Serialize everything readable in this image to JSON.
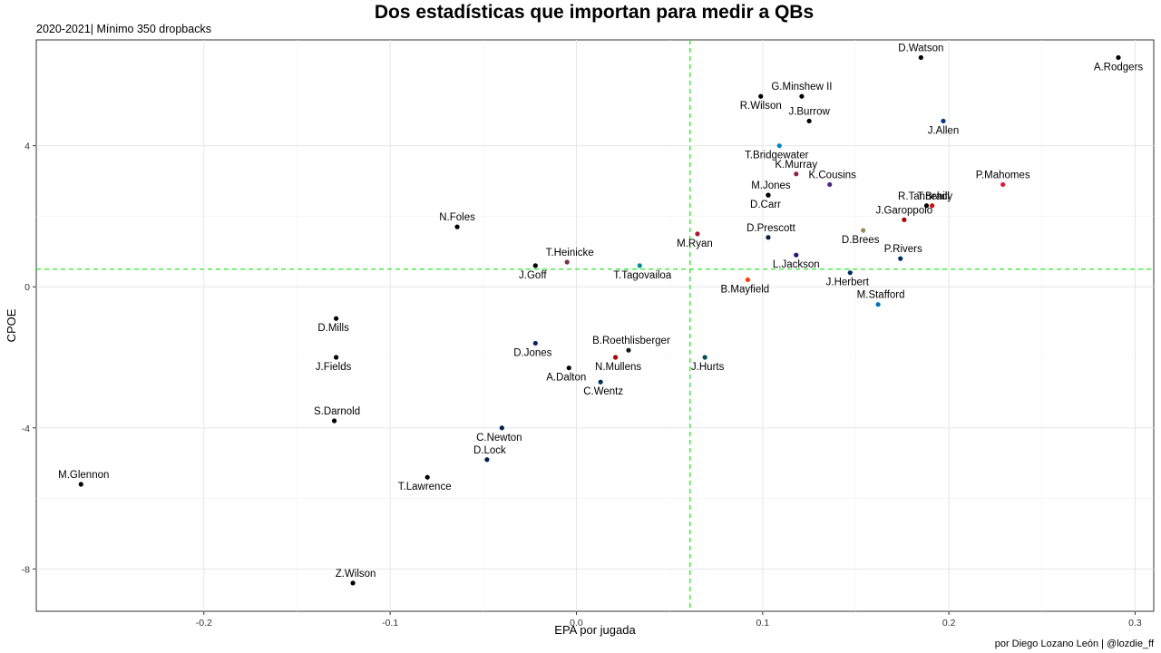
{
  "title": "Dos estadísticas que importan para medir a QBs",
  "subtitle": "2020-2021| Mínimo 350 dropbacks",
  "caption": "por Diego Lozano León | @lozdie_ff",
  "chart_data": {
    "type": "scatter",
    "xlabel": "EPA por jugada",
    "ylabel": "CPOE",
    "xlim": [
      -0.29,
      0.31
    ],
    "ylim": [
      -9.2,
      7.0
    ],
    "xticks": [
      -0.2,
      -0.1,
      0.0,
      0.1,
      0.2,
      0.3
    ],
    "xtick_labels": [
      "-0.2",
      "-0.1",
      "0.0",
      "0.1",
      "0.2",
      "0.3"
    ],
    "yticks": [
      -8,
      -4,
      0,
      4
    ],
    "ytick_labels": [
      "-8",
      "-4",
      "0",
      "4"
    ],
    "grid": true,
    "reference_lines": {
      "x": 0.061,
      "y": 0.5,
      "color": "#22ee22",
      "style": "dashed"
    },
    "points": [
      {
        "name": "D.Watson",
        "x": 0.185,
        "y": 6.5,
        "color": "#000000",
        "label_pos": "above"
      },
      {
        "name": "A.Rodgers",
        "x": 0.291,
        "y": 6.5,
        "color": "#000000",
        "label_pos": "below"
      },
      {
        "name": "G.Minshew II",
        "x": 0.121,
        "y": 5.4,
        "color": "#000000",
        "label_pos": "above"
      },
      {
        "name": "R.Wilson",
        "x": 0.099,
        "y": 5.4,
        "color": "#000000",
        "label_pos": "below"
      },
      {
        "name": "J.Burrow",
        "x": 0.125,
        "y": 4.7,
        "color": "#000000",
        "label_pos": "above"
      },
      {
        "name": "J.Allen",
        "x": 0.197,
        "y": 4.7,
        "color": "#00338d",
        "label_pos": "below"
      },
      {
        "name": "T.Bridgewater",
        "x": 0.109,
        "y": 4.0,
        "color": "#0085ca",
        "label_pos": "below-left"
      },
      {
        "name": "K.Murray",
        "x": 0.118,
        "y": 3.2,
        "color": "#97233f",
        "label_pos": "above"
      },
      {
        "name": "K.Cousins",
        "x": 0.136,
        "y": 2.9,
        "color": "#4f2683",
        "label_pos": "above-right"
      },
      {
        "name": "P.Mahomes",
        "x": 0.229,
        "y": 2.9,
        "color": "#e31837",
        "label_pos": "above"
      },
      {
        "name": "M.Jones",
        "x": 0.103,
        "y": 2.6,
        "color": "#000000",
        "label_pos": "above-right"
      },
      {
        "name": "D.Carr",
        "x": 0.103,
        "y": 2.6,
        "color": "#000000",
        "label_pos": "below-left"
      },
      {
        "name": "R.Tannehill",
        "x": 0.188,
        "y": 2.3,
        "color": "#000000",
        "label_pos": "above-left"
      },
      {
        "name": "T.Brady",
        "x": 0.191,
        "y": 2.3,
        "color": "#d50a0a",
        "label_pos": "above-right"
      },
      {
        "name": "J.Garoppolo",
        "x": 0.176,
        "y": 1.9,
        "color": "#aa0000",
        "label_pos": "above"
      },
      {
        "name": "N.Foles",
        "x": -0.064,
        "y": 1.7,
        "color": "#000000",
        "label_pos": "above"
      },
      {
        "name": "D.Prescott",
        "x": 0.103,
        "y": 1.4,
        "color": "#041e42",
        "label_pos": "above-right"
      },
      {
        "name": "D.Brees",
        "x": 0.154,
        "y": 1.6,
        "color": "#9f8958",
        "label_pos": "below-left"
      },
      {
        "name": "M.Ryan",
        "x": 0.065,
        "y": 1.5,
        "color": "#a71930",
        "label_pos": "below-left"
      },
      {
        "name": "L.Jackson",
        "x": 0.118,
        "y": 0.9,
        "color": "#241773",
        "label_pos": "right"
      },
      {
        "name": "P.Rivers",
        "x": 0.174,
        "y": 0.8,
        "color": "#002c5f",
        "label_pos": "above-right"
      },
      {
        "name": "T.Heinicke",
        "x": -0.005,
        "y": 0.7,
        "color": "#773141",
        "label_pos": "above-right"
      },
      {
        "name": "T.Tagovailoa",
        "x": 0.034,
        "y": 0.6,
        "color": "#008e97",
        "label_pos": "below-right"
      },
      {
        "name": "J.Goff",
        "x": -0.022,
        "y": 0.6,
        "color": "#000000",
        "label_pos": "below-left"
      },
      {
        "name": "J.Herbert",
        "x": 0.147,
        "y": 0.4,
        "color": "#002a5e",
        "label_pos": "below-left"
      },
      {
        "name": "B.Mayfield",
        "x": 0.092,
        "y": 0.2,
        "color": "#ff3c00",
        "label_pos": "below-left"
      },
      {
        "name": "M.Stafford",
        "x": 0.162,
        "y": -0.5,
        "color": "#0076b6",
        "label_pos": "above-right"
      },
      {
        "name": "D.Mills",
        "x": -0.129,
        "y": -0.9,
        "color": "#000000",
        "label_pos": "below-left"
      },
      {
        "name": "D.Jones",
        "x": -0.022,
        "y": -1.6,
        "color": "#0b2265",
        "label_pos": "below-left"
      },
      {
        "name": "B.Roethlisberger",
        "x": 0.028,
        "y": -1.8,
        "color": "#101820",
        "label_pos": "above-right"
      },
      {
        "name": "J.Fields",
        "x": -0.129,
        "y": -2.0,
        "color": "#000000",
        "label_pos": "below-left"
      },
      {
        "name": "J.Hurts",
        "x": 0.069,
        "y": -2.0,
        "color": "#004c54",
        "label_pos": "below-right"
      },
      {
        "name": "N.Mullens",
        "x": 0.021,
        "y": -2.0,
        "color": "#aa0000",
        "label_pos": "below-right"
      },
      {
        "name": "A.Dalton",
        "x": -0.004,
        "y": -2.3,
        "color": "#000000",
        "label_pos": "below-left"
      },
      {
        "name": "C.Wentz",
        "x": 0.013,
        "y": -2.7,
        "color": "#002c5f",
        "label_pos": "below-right"
      },
      {
        "name": "S.Darnold",
        "x": -0.13,
        "y": -3.8,
        "color": "#000000",
        "label_pos": "above-right"
      },
      {
        "name": "C.Newton",
        "x": -0.04,
        "y": -4.0,
        "color": "#002244",
        "label_pos": "below-left"
      },
      {
        "name": "D.Lock",
        "x": -0.048,
        "y": -4.9,
        "color": "#002244",
        "label_pos": "above-right"
      },
      {
        "name": "M.Glennon",
        "x": -0.266,
        "y": -5.6,
        "color": "#000000",
        "label_pos": "above-right"
      },
      {
        "name": "T.Lawrence",
        "x": -0.08,
        "y": -5.4,
        "color": "#000000",
        "label_pos": "below-left"
      },
      {
        "name": "Z.Wilson",
        "x": -0.12,
        "y": -8.4,
        "color": "#000000",
        "label_pos": "above-right"
      }
    ]
  }
}
